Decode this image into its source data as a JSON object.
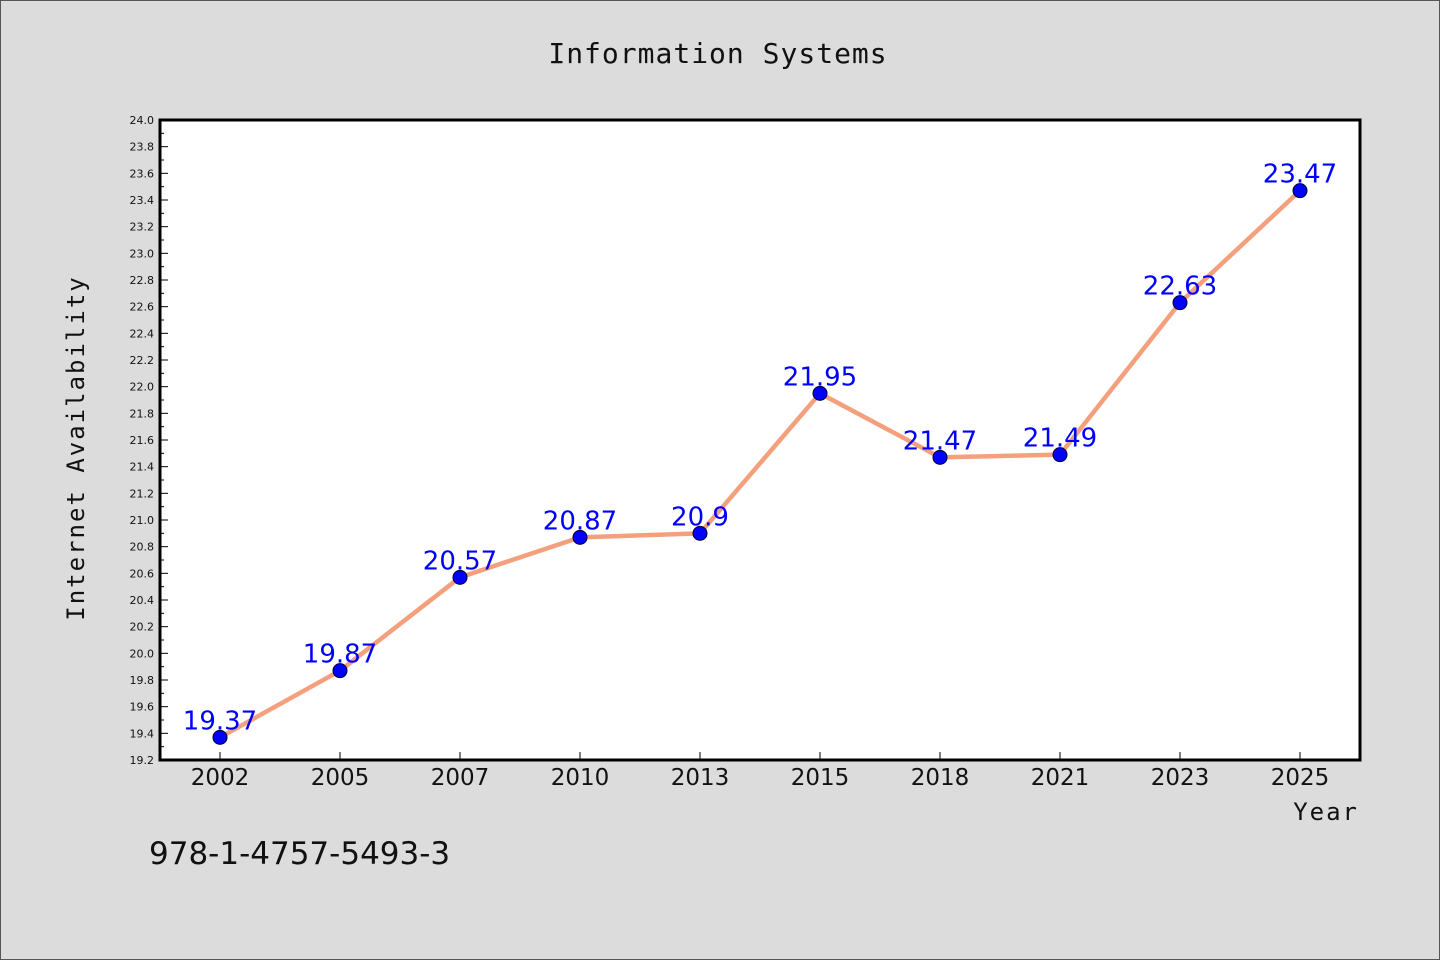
{
  "chart_data": {
    "type": "line",
    "title": "Information Systems",
    "xlabel": "Year",
    "ylabel": "Internet Availability",
    "categories": [
      "2002",
      "2005",
      "2007",
      "2010",
      "2013",
      "2015",
      "2018",
      "2021",
      "2023",
      "2025"
    ],
    "series": [
      {
        "values": [
          19.37,
          19.87,
          20.57,
          20.87,
          20.9,
          21.95,
          21.47,
          21.49,
          22.63,
          23.47
        ],
        "data_labels": [
          "19.37",
          "19.87",
          "20.57",
          "20.87",
          "20.9",
          "21.95",
          "21.47",
          "21.49",
          "22.63",
          "23.47"
        ],
        "line_color": "#f4a07c",
        "marker_color": "#0000ff"
      }
    ],
    "ylim": [
      19.2,
      24.0
    ],
    "ytick_step": 0.2,
    "grid": false,
    "legend": "none"
  },
  "annotation": "978-1-4757-5493-3",
  "colors": {
    "background": "#dcdcdc",
    "plot_background": "#ffffff",
    "line": "#f4a07c",
    "marker": "#0000ff",
    "data_label": "#0000ff"
  }
}
